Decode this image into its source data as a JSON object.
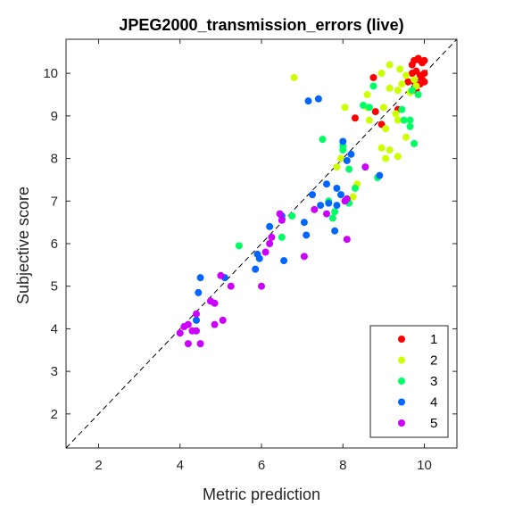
{
  "chart_data": {
    "type": "scatter",
    "title": "JPEG2000_transmission_errors (live)",
    "xlabel": "Metric prediction",
    "ylabel": "Subjective score",
    "xlim": [
      1.2,
      10.8
    ],
    "ylim": [
      1.2,
      10.8
    ],
    "xticks": [
      2,
      4,
      6,
      8,
      10
    ],
    "yticks": [
      2,
      3,
      4,
      5,
      6,
      7,
      8,
      9,
      10
    ],
    "grid": false,
    "legend_position": "bottom-right",
    "reference_line": "dashed diagonal y = x",
    "series": [
      {
        "name": "1",
        "color": "#ff0000",
        "points": [
          [
            9.85,
            10.35
          ],
          [
            9.9,
            10.3
          ],
          [
            9.75,
            10.3
          ],
          [
            10.0,
            10.3
          ],
          [
            9.95,
            10.25
          ],
          [
            9.7,
            10.2
          ],
          [
            9.8,
            10.05
          ],
          [
            10.0,
            10.0
          ],
          [
            9.7,
            10.0
          ],
          [
            9.9,
            9.95
          ],
          [
            9.95,
            9.85
          ],
          [
            10.0,
            9.8
          ],
          [
            9.9,
            9.75
          ],
          [
            9.75,
            9.8
          ],
          [
            9.8,
            9.6
          ],
          [
            9.6,
            9.8
          ],
          [
            8.75,
            9.9
          ],
          [
            9.35,
            9.15
          ],
          [
            8.8,
            9.1
          ],
          [
            8.3,
            8.95
          ],
          [
            8.95,
            8.8
          ]
        ]
      },
      {
        "name": "2",
        "color": "#ccff00",
        "points": [
          [
            6.8,
            9.9
          ],
          [
            9.15,
            10.2
          ],
          [
            9.4,
            10.1
          ],
          [
            8.95,
            10.0
          ],
          [
            9.55,
            9.95
          ],
          [
            9.75,
            9.85
          ],
          [
            9.45,
            9.75
          ],
          [
            9.15,
            9.65
          ],
          [
            9.35,
            9.6
          ],
          [
            9.8,
            9.7
          ],
          [
            9.65,
            9.55
          ],
          [
            8.6,
            9.5
          ],
          [
            8.6,
            9.2
          ],
          [
            8.05,
            9.2
          ],
          [
            9.0,
            9.2
          ],
          [
            9.3,
            9.05
          ],
          [
            9.35,
            8.9
          ],
          [
            8.65,
            8.9
          ],
          [
            9.05,
            8.7
          ],
          [
            9.55,
            8.5
          ],
          [
            8.95,
            8.25
          ],
          [
            9.15,
            8.2
          ],
          [
            9.35,
            8.05
          ],
          [
            9.05,
            8.0
          ],
          [
            7.95,
            8.0
          ],
          [
            7.85,
            7.8
          ],
          [
            8.35,
            7.4
          ],
          [
            8.25,
            7.1
          ]
        ]
      },
      {
        "name": "3",
        "color": "#00ff66",
        "points": [
          [
            5.45,
            5.95
          ],
          [
            6.5,
            6.15
          ],
          [
            6.75,
            6.65
          ],
          [
            7.65,
            7.0
          ],
          [
            7.75,
            6.6
          ],
          [
            7.5,
            8.45
          ],
          [
            7.8,
            6.75
          ],
          [
            8.0,
            8.2
          ],
          [
            8.0,
            8.3
          ],
          [
            8.1,
            7.05
          ],
          [
            8.15,
            7.75
          ],
          [
            8.15,
            6.95
          ],
          [
            8.3,
            7.3
          ],
          [
            8.5,
            9.25
          ],
          [
            8.65,
            9.2
          ],
          [
            8.75,
            9.7
          ],
          [
            8.85,
            7.55
          ],
          [
            9.45,
            9.15
          ],
          [
            9.65,
            8.9
          ],
          [
            9.7,
            9.6
          ],
          [
            9.85,
            9.5
          ],
          [
            9.75,
            8.35
          ],
          [
            9.5,
            8.9
          ],
          [
            9.65,
            8.75
          ]
        ]
      },
      {
        "name": "4",
        "color": "#0066ff",
        "points": [
          [
            4.4,
            4.2
          ],
          [
            4.45,
            4.85
          ],
          [
            4.5,
            5.2
          ],
          [
            5.1,
            5.2
          ],
          [
            5.85,
            5.4
          ],
          [
            5.9,
            5.75
          ],
          [
            5.95,
            5.65
          ],
          [
            6.2,
            6.4
          ],
          [
            6.55,
            5.6
          ],
          [
            6.5,
            6.65
          ],
          [
            7.05,
            6.5
          ],
          [
            7.1,
            6.2
          ],
          [
            7.25,
            7.15
          ],
          [
            7.45,
            6.9
          ],
          [
            7.6,
            7.4
          ],
          [
            7.8,
            6.3
          ],
          [
            7.85,
            7.3
          ],
          [
            7.85,
            6.9
          ],
          [
            8.0,
            8.4
          ],
          [
            8.1,
            7.95
          ],
          [
            8.2,
            8.1
          ],
          [
            7.95,
            7.15
          ],
          [
            7.65,
            6.95
          ],
          [
            7.15,
            9.35
          ],
          [
            7.4,
            9.4
          ],
          [
            8.9,
            7.6
          ]
        ]
      },
      {
        "name": "5",
        "color": "#cc00ff",
        "points": [
          [
            4.0,
            3.9
          ],
          [
            4.1,
            4.05
          ],
          [
            4.2,
            3.65
          ],
          [
            4.3,
            3.95
          ],
          [
            4.4,
            3.95
          ],
          [
            4.5,
            3.65
          ],
          [
            4.4,
            4.35
          ],
          [
            4.2,
            4.1
          ],
          [
            4.75,
            4.65
          ],
          [
            4.85,
            4.6
          ],
          [
            4.85,
            4.1
          ],
          [
            5.05,
            4.2
          ],
          [
            5.0,
            5.25
          ],
          [
            5.25,
            5.0
          ],
          [
            6.0,
            5.0
          ],
          [
            6.1,
            5.8
          ],
          [
            6.2,
            6.0
          ],
          [
            6.25,
            6.15
          ],
          [
            6.45,
            6.7
          ],
          [
            6.5,
            6.55
          ],
          [
            7.05,
            5.7
          ],
          [
            7.3,
            6.8
          ],
          [
            7.6,
            6.7
          ],
          [
            8.05,
            7.0
          ],
          [
            8.1,
            6.1
          ],
          [
            8.55,
            7.8
          ],
          [
            8.1,
            7.05
          ]
        ]
      }
    ]
  }
}
